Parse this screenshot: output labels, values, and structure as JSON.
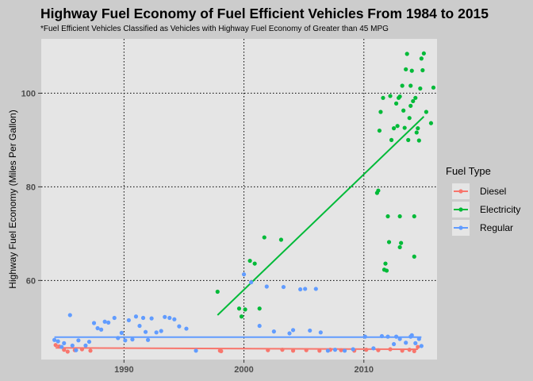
{
  "title": "Highway Fuel Economy of Fuel Efficient Vehicles From 1984 to 2015",
  "subtitle": "*Fuel Efficient Vehicles Classified as Vehicles with Highway Fuel Economy of Greater than 45 MPG",
  "colors": {
    "background": "#cccccc",
    "panel": "#e5e5e5",
    "grid": "#000000",
    "Diesel": "#F8766D",
    "Electricity": "#00BA38",
    "Regular": "#619CFF"
  },
  "chart_data": {
    "type": "scatter",
    "xlabel": "",
    "ylabel": "Highway Fuel Economy (Miles Per Gallon)",
    "xlim": [
      1983.1,
      2016.1
    ],
    "ylim": [
      43.1,
      111.6
    ],
    "x_ticks": [
      1990,
      2000,
      2010
    ],
    "x_tick_labels": [
      "1990",
      "2000",
      "2010"
    ],
    "y_ticks": [
      60,
      80,
      100
    ],
    "y_tick_labels": [
      "60",
      "80",
      "100"
    ],
    "grid": "major dotted",
    "legend": {
      "title": "Fuel Type",
      "placement": "right",
      "entries": [
        "Diesel",
        "Electricity",
        "Regular"
      ]
    },
    "series": [
      {
        "name": "Diesel",
        "points": [
          [
            1984.3,
            46.2
          ],
          [
            1984.6,
            45.9
          ],
          [
            1985.0,
            45.2
          ],
          [
            1985.3,
            44.8
          ],
          [
            1985.9,
            45.1
          ],
          [
            1986.5,
            45.3
          ],
          [
            1987.2,
            45.0
          ],
          [
            1998.0,
            45.0
          ],
          [
            1998.1,
            44.9
          ],
          [
            2002.0,
            45.1
          ],
          [
            2003.2,
            45.2
          ],
          [
            2004.1,
            45.0
          ],
          [
            2005.2,
            45.1
          ],
          [
            2006.3,
            45.0
          ],
          [
            2007.2,
            45.2
          ],
          [
            2008.1,
            45.1
          ],
          [
            2009.2,
            45.0
          ],
          [
            2010.2,
            45.2
          ],
          [
            2011.2,
            45.1
          ],
          [
            2012.2,
            45.3
          ],
          [
            2013.2,
            45.0
          ],
          [
            2013.8,
            45.2
          ],
          [
            2014.2,
            44.9
          ],
          [
            2014.5,
            45.8
          ]
        ],
        "trend": [
          [
            1984.3,
            45.6
          ],
          [
            2014.5,
            45.3
          ]
        ]
      },
      {
        "name": "Electricity",
        "points": [
          [
            1997.8,
            57.6
          ],
          [
            1999.6,
            54.0
          ],
          [
            1999.8,
            52.3
          ],
          [
            2000.1,
            53.8
          ],
          [
            2000.5,
            64.2
          ],
          [
            2000.9,
            63.6
          ],
          [
            2001.3,
            54.0
          ],
          [
            2001.7,
            69.2
          ],
          [
            2003.1,
            68.7
          ],
          [
            2011.1,
            78.7
          ],
          [
            2011.2,
            79.2
          ],
          [
            2011.3,
            92.0
          ],
          [
            2011.4,
            96.0
          ],
          [
            2011.6,
            99.0
          ],
          [
            2011.7,
            62.3
          ],
          [
            2011.8,
            63.6
          ],
          [
            2011.9,
            62.1
          ],
          [
            2012.0,
            73.7
          ],
          [
            2012.1,
            68.2
          ],
          [
            2012.2,
            99.4
          ],
          [
            2012.3,
            90.0
          ],
          [
            2012.5,
            92.5
          ],
          [
            2012.7,
            97.8
          ],
          [
            2012.8,
            93.0
          ],
          [
            2012.9,
            99.0
          ],
          [
            2013.0,
            99.3
          ],
          [
            2013.0,
            67.1
          ],
          [
            2013.0,
            73.7
          ],
          [
            2013.1,
            68.0
          ],
          [
            2013.2,
            101.6
          ],
          [
            2013.3,
            96.3
          ],
          [
            2013.4,
            92.6
          ],
          [
            2013.5,
            105.1
          ],
          [
            2013.6,
            108.4
          ],
          [
            2013.7,
            90.0
          ],
          [
            2013.8,
            94.7
          ],
          [
            2013.9,
            101.6
          ],
          [
            2013.9,
            97.3
          ],
          [
            2014.0,
            104.8
          ],
          [
            2014.1,
            98.3
          ],
          [
            2014.2,
            73.7
          ],
          [
            2014.2,
            65.1
          ],
          [
            2014.3,
            99.0
          ],
          [
            2014.4,
            91.6
          ],
          [
            2014.5,
            92.5
          ],
          [
            2014.6,
            89.9
          ],
          [
            2014.7,
            101.0
          ],
          [
            2014.8,
            107.4
          ],
          [
            2014.9,
            104.9
          ],
          [
            2015.0,
            108.5
          ],
          [
            2015.2,
            96.0
          ],
          [
            2015.6,
            93.6
          ],
          [
            2015.8,
            101.2
          ]
        ],
        "trend": [
          [
            1997.8,
            52.6
          ],
          [
            2015.0,
            95.0
          ]
        ]
      },
      {
        "name": "Regular",
        "points": [
          [
            1984.2,
            47.3
          ],
          [
            1984.5,
            47.0
          ],
          [
            1984.8,
            45.8
          ],
          [
            1985.0,
            46.6
          ],
          [
            1985.5,
            52.6
          ],
          [
            1985.7,
            46.1
          ],
          [
            1986.0,
            45.1
          ],
          [
            1986.2,
            47.2
          ],
          [
            1986.8,
            46.1
          ],
          [
            1987.1,
            46.9
          ],
          [
            1987.5,
            50.9
          ],
          [
            1987.8,
            49.8
          ],
          [
            1988.1,
            49.5
          ],
          [
            1988.4,
            51.2
          ],
          [
            1988.7,
            51.0
          ],
          [
            1989.2,
            52.0
          ],
          [
            1989.5,
            47.7
          ],
          [
            1989.8,
            48.8
          ],
          [
            1990.1,
            47.2
          ],
          [
            1990.4,
            51.5
          ],
          [
            1990.7,
            47.4
          ],
          [
            1991.0,
            52.3
          ],
          [
            1991.3,
            50.3
          ],
          [
            1991.6,
            52.0
          ],
          [
            1991.8,
            49.0
          ],
          [
            1992.0,
            47.3
          ],
          [
            1992.3,
            51.9
          ],
          [
            1992.7,
            48.9
          ],
          [
            1993.1,
            49.2
          ],
          [
            1993.4,
            52.2
          ],
          [
            1993.8,
            52.0
          ],
          [
            1994.2,
            51.7
          ],
          [
            1994.6,
            50.2
          ],
          [
            1995.2,
            49.7
          ],
          [
            1996.0,
            45.0
          ],
          [
            2000.0,
            61.3
          ],
          [
            2000.6,
            59.6
          ],
          [
            2001.3,
            50.3
          ],
          [
            2001.9,
            58.7
          ],
          [
            2002.5,
            49.1
          ],
          [
            2003.3,
            58.6
          ],
          [
            2003.8,
            48.7
          ],
          [
            2004.1,
            49.4
          ],
          [
            2004.7,
            58.1
          ],
          [
            2005.1,
            58.2
          ],
          [
            2005.5,
            49.3
          ],
          [
            2006.0,
            58.2
          ],
          [
            2006.4,
            48.9
          ],
          [
            2007.0,
            45.0
          ],
          [
            2007.6,
            45.2
          ],
          [
            2008.4,
            45.0
          ],
          [
            2009.1,
            45.3
          ],
          [
            2010.1,
            48.0
          ],
          [
            2010.8,
            45.5
          ],
          [
            2011.5,
            48.1
          ],
          [
            2012.0,
            48.0
          ],
          [
            2012.5,
            46.4
          ],
          [
            2012.7,
            48.0
          ],
          [
            2013.0,
            47.5
          ],
          [
            2013.5,
            46.7
          ],
          [
            2013.9,
            48.0
          ],
          [
            2014.0,
            48.3
          ],
          [
            2014.3,
            46.6
          ],
          [
            2014.6,
            47.5
          ],
          [
            2014.8,
            46.0
          ]
        ],
        "trend": [
          [
            1984.2,
            47.9
          ],
          [
            2014.8,
            47.9
          ]
        ]
      }
    ]
  }
}
